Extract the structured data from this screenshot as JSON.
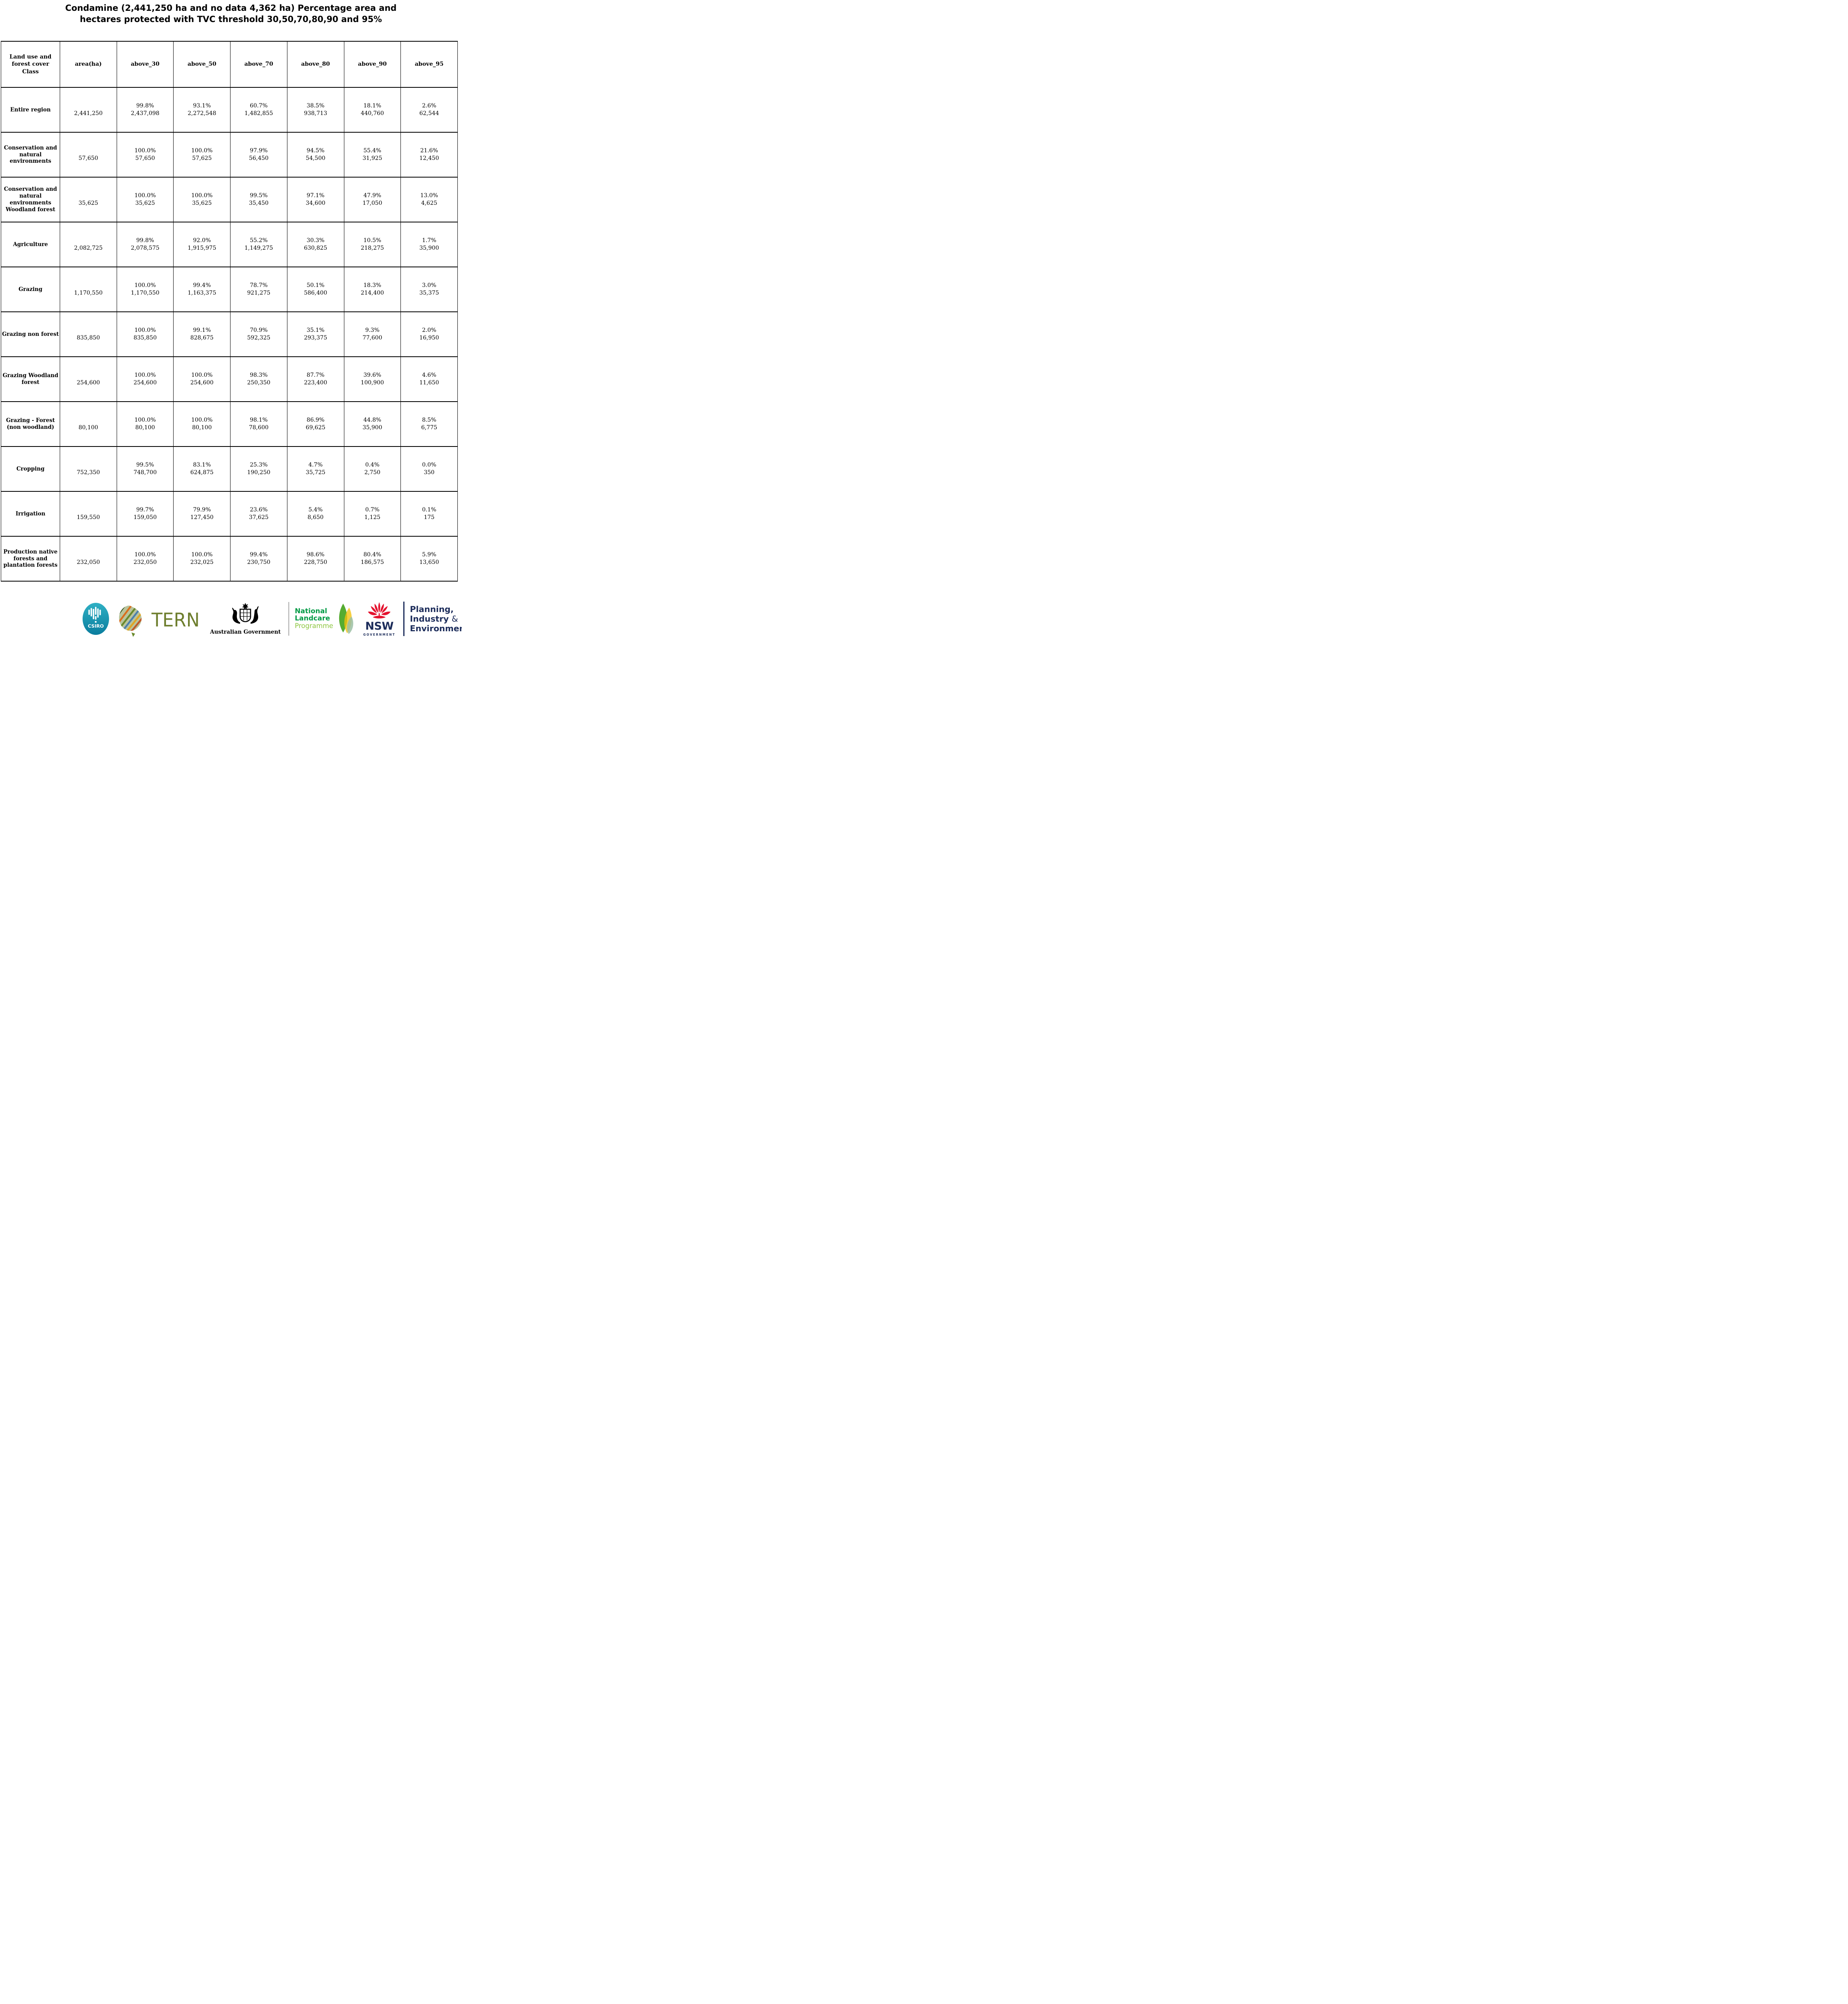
{
  "title": {
    "line1": "Condamine (2,441,250 ha and no data 4,362 ha) Percentage area and",
    "line2": "hectares protected with TVC threshold 30,50,70,80,90 and 95%"
  },
  "table": {
    "header": [
      "Land use and forest cover Class",
      "area(ha)",
      "above_30",
      "above_50",
      "above_70",
      "above_80",
      "above_90",
      "above_95"
    ],
    "rows": [
      {
        "label": "Entire region",
        "area": "2,441,250",
        "values": [
          [
            "99.8%",
            "2,437,098"
          ],
          [
            "93.1%",
            "2,272,548"
          ],
          [
            "60.7%",
            "1,482,855"
          ],
          [
            "38.5%",
            "938,713"
          ],
          [
            "18.1%",
            "440,760"
          ],
          [
            "2.6%",
            "62,544"
          ]
        ]
      },
      {
        "label": "Conservation and natural environments",
        "area": "57,650",
        "values": [
          [
            "100.0%",
            "57,650"
          ],
          [
            "100.0%",
            "57,625"
          ],
          [
            "97.9%",
            "56,450"
          ],
          [
            "94.5%",
            "54,500"
          ],
          [
            "55.4%",
            "31,925"
          ],
          [
            "21.6%",
            "12,450"
          ]
        ]
      },
      {
        "label": "Conservation and natural environments Woodland forest",
        "area": "35,625",
        "values": [
          [
            "100.0%",
            "35,625"
          ],
          [
            "100.0%",
            "35,625"
          ],
          [
            "99.5%",
            "35,450"
          ],
          [
            "97.1%",
            "34,600"
          ],
          [
            "47.9%",
            "17,050"
          ],
          [
            "13.0%",
            "4,625"
          ]
        ]
      },
      {
        "label": "Agriculture",
        "area": "2,082,725",
        "values": [
          [
            "99.8%",
            "2,078,575"
          ],
          [
            "92.0%",
            "1,915,975"
          ],
          [
            "55.2%",
            "1,149,275"
          ],
          [
            "30.3%",
            "630,825"
          ],
          [
            "10.5%",
            "218,275"
          ],
          [
            "1.7%",
            "35,900"
          ]
        ]
      },
      {
        "label": "Grazing",
        "area": "1,170,550",
        "values": [
          [
            "100.0%",
            "1,170,550"
          ],
          [
            "99.4%",
            "1,163,375"
          ],
          [
            "78.7%",
            "921,275"
          ],
          [
            "50.1%",
            "586,400"
          ],
          [
            "18.3%",
            "214,400"
          ],
          [
            "3.0%",
            "35,375"
          ]
        ]
      },
      {
        "label": "Grazing non forest",
        "area": "835,850",
        "values": [
          [
            "100.0%",
            "835,850"
          ],
          [
            "99.1%",
            "828,675"
          ],
          [
            "70.9%",
            "592,325"
          ],
          [
            "35.1%",
            "293,375"
          ],
          [
            "9.3%",
            "77,600"
          ],
          [
            "2.0%",
            "16,950"
          ]
        ]
      },
      {
        "label": "Grazing Woodland forest",
        "area": "254,600",
        "values": [
          [
            "100.0%",
            "254,600"
          ],
          [
            "100.0%",
            "254,600"
          ],
          [
            "98.3%",
            "250,350"
          ],
          [
            "87.7%",
            "223,400"
          ],
          [
            "39.6%",
            "100,900"
          ],
          [
            "4.6%",
            "11,650"
          ]
        ]
      },
      {
        "label": "Grazing - Forest (non woodland)",
        "area": "80,100",
        "values": [
          [
            "100.0%",
            "80,100"
          ],
          [
            "100.0%",
            "80,100"
          ],
          [
            "98.1%",
            "78,600"
          ],
          [
            "86.9%",
            "69,625"
          ],
          [
            "44.8%",
            "35,900"
          ],
          [
            "8.5%",
            "6,775"
          ]
        ]
      },
      {
        "label": "Cropping",
        "area": "752,350",
        "values": [
          [
            "99.5%",
            "748,700"
          ],
          [
            "83.1%",
            "624,875"
          ],
          [
            "25.3%",
            "190,250"
          ],
          [
            "4.7%",
            "35,725"
          ],
          [
            "0.4%",
            "2,750"
          ],
          [
            "0.0%",
            "350"
          ]
        ]
      },
      {
        "label": "Irrigation",
        "area": "159,550",
        "values": [
          [
            "99.7%",
            "159,050"
          ],
          [
            "79.9%",
            "127,450"
          ],
          [
            "23.6%",
            "37,625"
          ],
          [
            "5.4%",
            "8,650"
          ],
          [
            "0.7%",
            "1,125"
          ],
          [
            "0.1%",
            "175"
          ]
        ]
      },
      {
        "label": "Production native forests and plantation forests",
        "area": "232,050",
        "values": [
          [
            "100.0%",
            "232,050"
          ],
          [
            "100.0%",
            "232,025"
          ],
          [
            "99.4%",
            "230,750"
          ],
          [
            "98.6%",
            "228,750"
          ],
          [
            "80.4%",
            "186,575"
          ],
          [
            "5.9%",
            "13,650"
          ]
        ]
      }
    ]
  },
  "logos": {
    "csiro": {
      "label": "CSIRO",
      "teal_top": "#2fb0c4",
      "teal_bottom": "#0a7d9e"
    },
    "tern": {
      "label": "TERN",
      "olive": "#6e7e2e"
    },
    "ausgov": {
      "caption": "Australian Government"
    },
    "landcare": {
      "line1": "National",
      "line2": "Landcare",
      "line3": "Programme",
      "green": "#009a44",
      "light_green": "#8cc63f"
    },
    "nsw": {
      "word": "NSW",
      "sub": "GOVERNMENT",
      "navy": "#1d2d5b",
      "red": "#e4122e"
    },
    "planning": {
      "line1": "Planning,",
      "line2": "Industry",
      "line2_amp": "&",
      "line3": "Environment"
    }
  }
}
